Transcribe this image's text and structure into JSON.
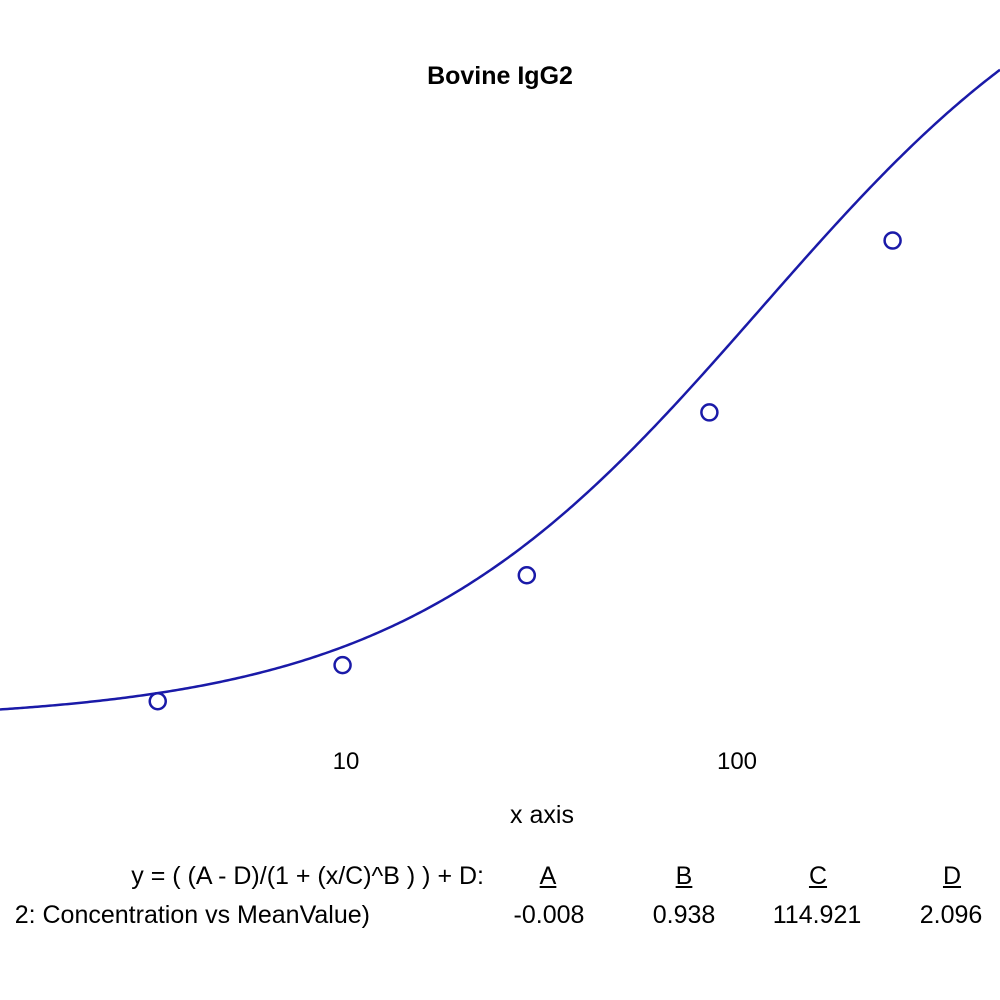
{
  "chart_data": {
    "type": "scatter",
    "title": "Bovine IgG2",
    "xlabel": "x axis",
    "ylabel": "",
    "x_scale": "log",
    "x_ticks": [
      "10",
      "100"
    ],
    "series": [
      {
        "name": "",
        "points": [
          {
            "x": 3.3,
            "y": 0.044
          },
          {
            "x": 9.8,
            "y": 0.136
          },
          {
            "x": 29,
            "y": 0.365
          },
          {
            "x": 85,
            "y": 0.78
          },
          {
            "x": 250,
            "y": 1.218
          }
        ]
      }
    ],
    "fit": {
      "equation": "y = ( (A - D)/(1 + (x/C)^B ) ) + D:",
      "series_label": "2: Concentration vs MeanValue)",
      "params": [
        {
          "name": "A",
          "value": "-0.008"
        },
        {
          "name": "B",
          "value": "0.938"
        },
        {
          "name": "C",
          "value": "114.921"
        },
        {
          "name": "D",
          "value": "2.096"
        }
      ],
      "A": -0.008,
      "B": 0.938,
      "C": 114.921,
      "D": 2.096
    },
    "color": "#1a1aa8",
    "grid": false
  }
}
